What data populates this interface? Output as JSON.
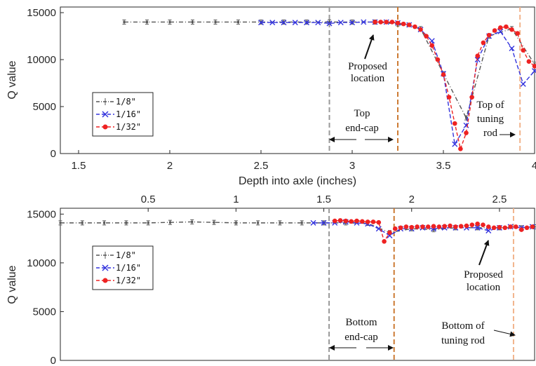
{
  "chart_data": [
    {
      "type": "line",
      "xlabel": "Depth into axle (inches)",
      "ylabel": "Q value",
      "xlim": [
        1.4,
        4.0
      ],
      "ylim": [
        0,
        15600
      ],
      "xticks": [
        1.5,
        2,
        2.5,
        3,
        3.5,
        4
      ],
      "xtick_labels": [
        "1.5",
        "2",
        "2.5",
        "3",
        "3.5",
        "4"
      ],
      "yticks": [
        0,
        5000,
        10000,
        15000
      ],
      "ytick_labels": [
        "0",
        "5000",
        "10000",
        "15000"
      ],
      "grid": false,
      "legend_position": "middle-left",
      "series": [
        {
          "name": "1/8\"",
          "color": "#555555",
          "marker": "errorbar",
          "x": [
            1.75,
            1.875,
            2.0,
            2.125,
            2.25,
            2.375,
            2.5,
            2.625,
            2.75,
            2.875,
            3.0,
            3.125,
            3.25,
            3.375,
            3.5,
            3.625,
            3.75,
            3.875,
            4.0
          ],
          "y": [
            14000,
            14000,
            14000,
            14000,
            14000,
            14000,
            14000,
            14000,
            14000,
            14000,
            14000,
            14000,
            13800,
            13300,
            8500,
            3800,
            12500,
            13300,
            9500
          ]
        },
        {
          "name": "1/16\"",
          "color": "#3333dd",
          "marker": "x",
          "x": [
            2.5,
            2.5625,
            2.625,
            2.6875,
            2.75,
            2.8125,
            2.875,
            2.9375,
            3.0,
            3.0625,
            3.125,
            3.1875,
            3.25,
            3.3125,
            3.375,
            3.4375,
            3.5,
            3.5625,
            3.625,
            3.6875,
            3.75,
            3.8125,
            3.875,
            3.9375,
            4.0
          ],
          "y": [
            13950,
            13950,
            13950,
            13950,
            13950,
            13950,
            13850,
            13950,
            13950,
            14000,
            14000,
            14000,
            13900,
            13700,
            13200,
            12000,
            8500,
            1000,
            3000,
            10000,
            12500,
            13000,
            11200,
            7400,
            8800
          ]
        },
        {
          "name": "1/32\"",
          "color": "#ee2222",
          "marker": "dot",
          "x": [
            3.125,
            3.15625,
            3.1875,
            3.21875,
            3.25,
            3.28125,
            3.3125,
            3.34375,
            3.375,
            3.40625,
            3.4375,
            3.46875,
            3.5,
            3.53125,
            3.5625,
            3.59375,
            3.625,
            3.65625,
            3.6875,
            3.71875,
            3.75,
            3.78125,
            3.8125,
            3.84375,
            3.875,
            3.90625,
            3.9375,
            3.96875,
            4.0
          ],
          "y": [
            14000,
            14000,
            14000,
            14000,
            13900,
            13800,
            13700,
            13500,
            13200,
            12500,
            11500,
            10000,
            8400,
            6000,
            3200,
            500,
            2200,
            6000,
            10400,
            11800,
            12600,
            13100,
            13400,
            13500,
            13200,
            12800,
            11000,
            9800,
            9300
          ]
        }
      ],
      "vlines": [
        {
          "x": 2.875,
          "color": "#999999"
        },
        {
          "x": 3.25,
          "color": "#cc7a33"
        },
        {
          "x": 3.92,
          "color": "#f2b48c"
        }
      ],
      "annotations": [
        {
          "text": [
            "Proposed",
            "location"
          ],
          "arrow": true
        },
        {
          "text": [
            "Top",
            "end-cap"
          ],
          "arrow": "double"
        },
        {
          "text": [
            "Top of",
            "tuning",
            "rod"
          ],
          "arrow": true
        }
      ]
    },
    {
      "type": "line",
      "xlabel": "",
      "ylabel": "Q value",
      "xlim": [
        0.0,
        2.7
      ],
      "ylim": [
        0,
        15600
      ],
      "xticks": [
        0.5,
        1,
        1.5,
        2,
        2.5
      ],
      "xtick_labels": [
        "0.5",
        "1",
        "1.5",
        "2",
        "2.5"
      ],
      "yticks": [
        0,
        5000,
        10000,
        15000
      ],
      "ytick_labels": [
        "0",
        "5000",
        "10000",
        "15000"
      ],
      "grid": false,
      "legend_position": "top-left",
      "series": [
        {
          "name": "1/8\"",
          "color": "#555555",
          "marker": "errorbar",
          "x": [
            0.0,
            0.125,
            0.25,
            0.375,
            0.5,
            0.625,
            0.75,
            0.875,
            1.0,
            1.125,
            1.25,
            1.375,
            1.5,
            1.625,
            1.75,
            1.875,
            2.0,
            2.125,
            2.25,
            2.375,
            2.5,
            2.625,
            2.7
          ],
          "y": [
            14100,
            14100,
            14100,
            14100,
            14100,
            14150,
            14200,
            14150,
            14100,
            14100,
            14100,
            14100,
            14100,
            14100,
            14050,
            13100,
            13500,
            13400,
            13600,
            13600,
            13600,
            13600,
            13700
          ]
        },
        {
          "name": "1/16\"",
          "color": "#3333dd",
          "marker": "x",
          "x": [
            1.44,
            1.5,
            1.5625,
            1.625,
            1.6875,
            1.75,
            1.8125,
            1.875,
            1.9375,
            2.0,
            2.0625,
            2.125,
            2.1875,
            2.25,
            2.3125,
            2.375,
            2.4375,
            2.5,
            2.5625,
            2.625,
            2.6875
          ],
          "y": [
            14100,
            14100,
            14100,
            14200,
            14100,
            14000,
            13500,
            12800,
            13500,
            13500,
            13600,
            13500,
            13600,
            13600,
            13600,
            13600,
            13300,
            13600,
            13700,
            13600,
            13700
          ]
        },
        {
          "name": "1/32\"",
          "color": "#ee2222",
          "marker": "dot",
          "x": [
            1.5625,
            1.59375,
            1.625,
            1.65625,
            1.6875,
            1.71875,
            1.75,
            1.78125,
            1.8125,
            1.84375,
            1.875,
            1.90625,
            1.9375,
            1.96875,
            2.0,
            2.03125,
            2.0625,
            2.09375,
            2.125,
            2.15625,
            2.1875,
            2.21875,
            2.25,
            2.28125,
            2.3125,
            2.34375,
            2.375,
            2.40625,
            2.4375,
            2.46875,
            2.5,
            2.53125,
            2.5625,
            2.59375,
            2.625,
            2.65625,
            2.6875
          ],
          "y": [
            14300,
            14350,
            14300,
            14250,
            14300,
            14250,
            14200,
            14200,
            14150,
            12200,
            13100,
            13500,
            13600,
            13700,
            13650,
            13700,
            13700,
            13700,
            13750,
            13700,
            13750,
            13800,
            13700,
            13750,
            13800,
            13900,
            14000,
            13900,
            13700,
            13600,
            13650,
            13600,
            13700,
            13700,
            13400,
            13600,
            13700
          ]
        }
      ],
      "vlines": [
        {
          "x": 1.53,
          "color": "#999999"
        },
        {
          "x": 1.9,
          "color": "#cc7a33"
        },
        {
          "x": 2.58,
          "color": "#f2b48c"
        }
      ],
      "annotations": [
        {
          "text": [
            "Proposed",
            "location"
          ],
          "arrow": true
        },
        {
          "text": [
            "Bottom",
            "end-cap"
          ],
          "arrow": "double"
        },
        {
          "text": [
            "Bottom of",
            "tuning rod"
          ],
          "arrow": true
        }
      ]
    }
  ]
}
